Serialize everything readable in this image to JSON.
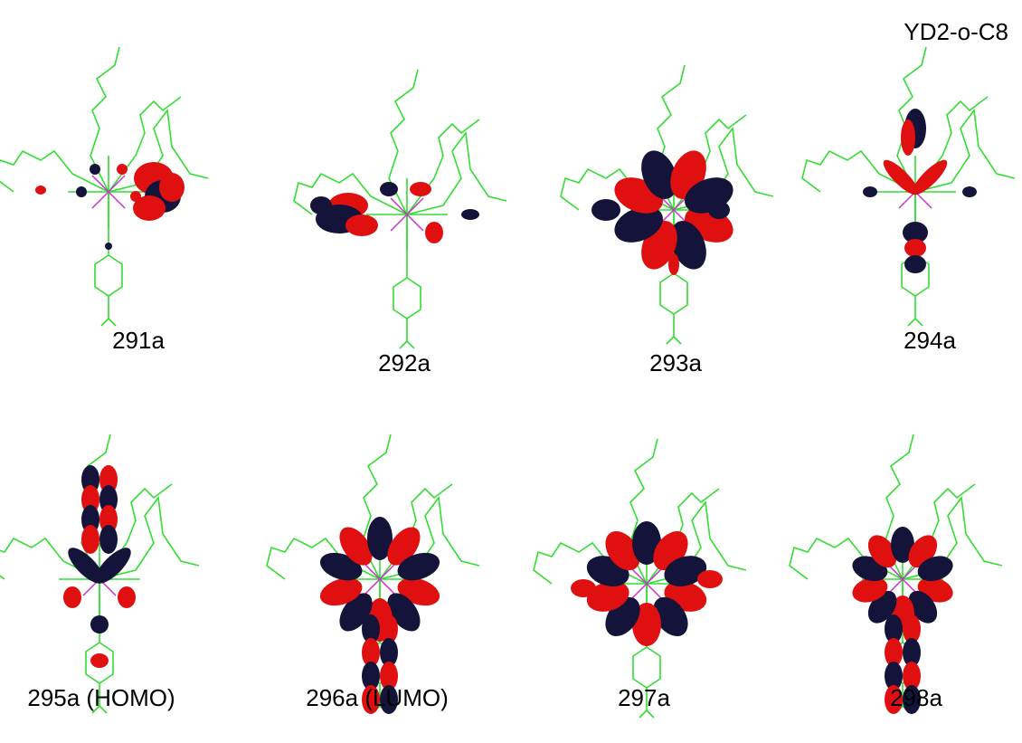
{
  "header": {
    "title": "YD2-o-C8"
  },
  "panels": [
    {
      "label": "291a"
    },
    {
      "label": "292a"
    },
    {
      "label": "293a"
    },
    {
      "label": "294a"
    },
    {
      "label": "295a (HOMO)"
    },
    {
      "label": "296a (LUMO)"
    },
    {
      "label": "297a"
    },
    {
      "label": "298a"
    }
  ]
}
